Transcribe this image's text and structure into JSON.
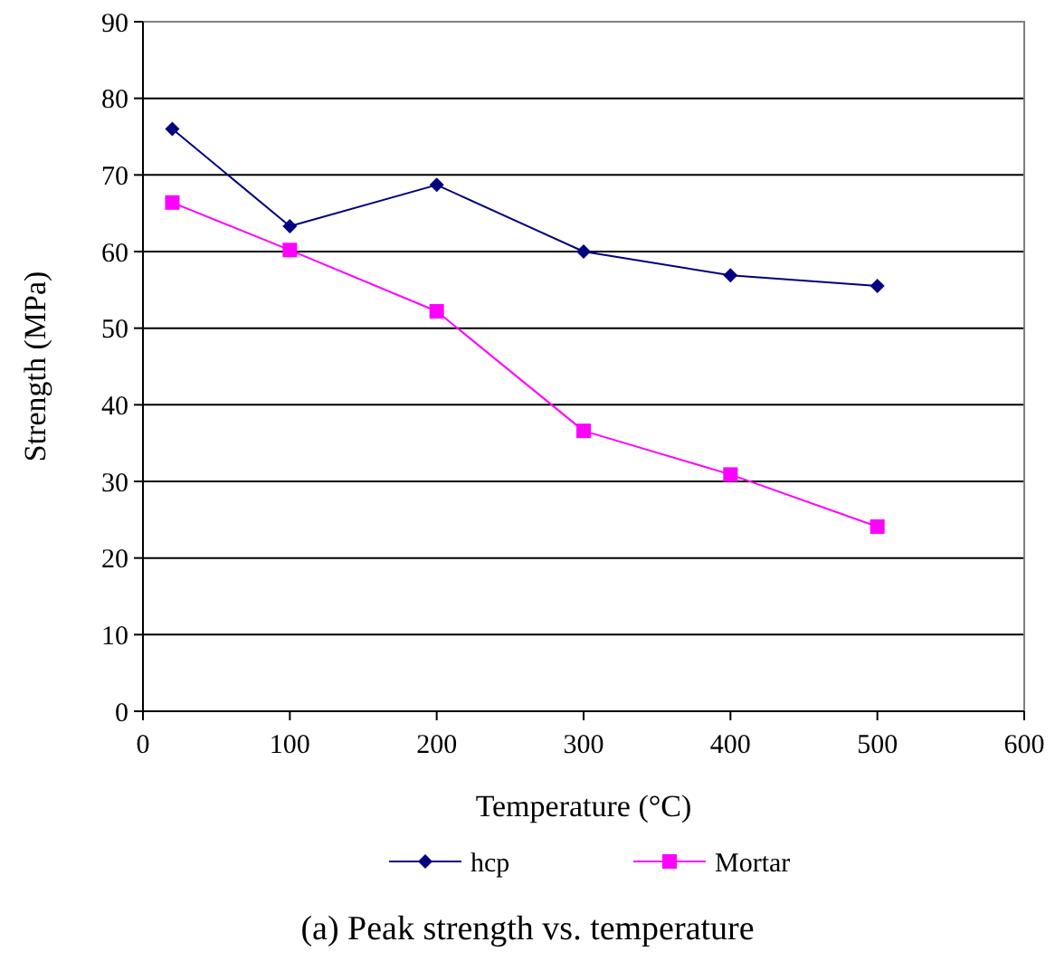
{
  "chart_data": {
    "type": "line",
    "title": "(a) Peak strength vs. temperature",
    "xlabel": "Temperature (°C)",
    "ylabel": "Strength (MPa)",
    "x": [
      20,
      100,
      200,
      300,
      400,
      500
    ],
    "series": [
      {
        "name": "hcp",
        "color": "#000080",
        "marker": "diamond",
        "values": [
          76,
          63.3,
          68.7,
          60,
          56.9,
          55.5
        ]
      },
      {
        "name": "Mortar",
        "color": "#ff00ff",
        "marker": "square",
        "values": [
          66.4,
          60.2,
          52.2,
          36.6,
          30.9,
          24.1
        ]
      }
    ],
    "xlim": [
      0,
      600
    ],
    "xticks": [
      0,
      100,
      200,
      300,
      400,
      500,
      600
    ],
    "ylim": [
      0,
      90
    ],
    "yticks": [
      0,
      10,
      20,
      30,
      40,
      50,
      60,
      70,
      80,
      90
    ],
    "grid": "y",
    "legend": "bottom",
    "line_style": "solid"
  }
}
